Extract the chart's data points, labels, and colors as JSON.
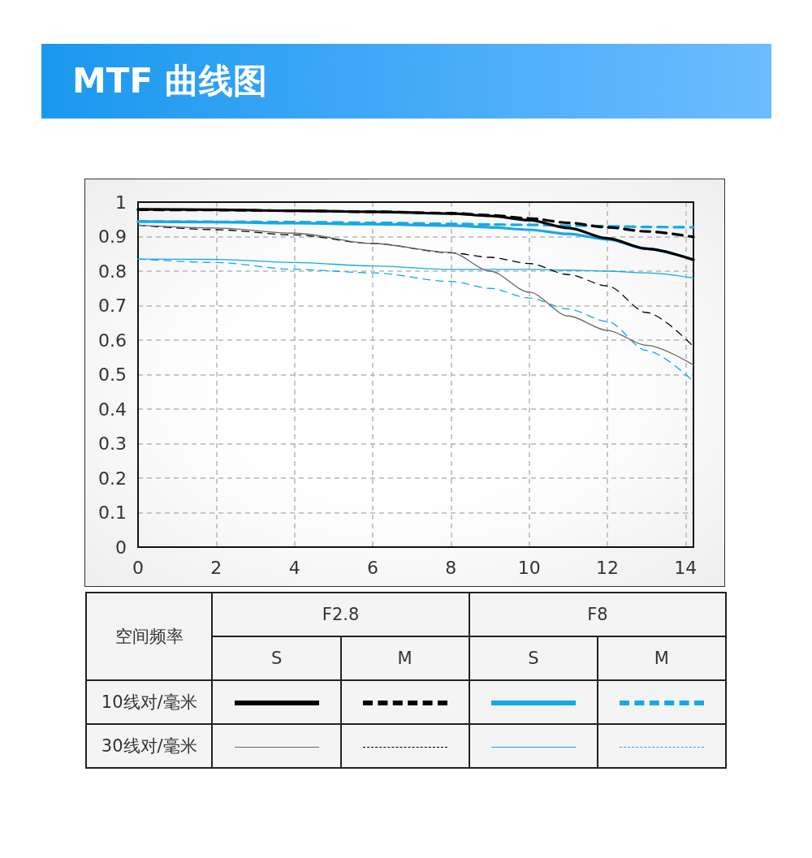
{
  "chart_data": {
    "type": "line",
    "title": "MTF 曲线图",
    "x": [
      0,
      2,
      4,
      6,
      8,
      9,
      10,
      11,
      12,
      13,
      14.2
    ],
    "series": [
      {
        "color": "#000000",
        "line_style": "solid",
        "values": [
          0.979,
          0.978,
          0.975,
          0.972,
          0.967,
          0.96,
          0.948,
          0.925,
          0.895,
          0.865,
          0.833
        ]
      },
      {
        "color": "#000000",
        "line_style": "dashed",
        "values": [
          0.978,
          0.977,
          0.975,
          0.972,
          0.968,
          0.962,
          0.953,
          0.94,
          0.927,
          0.915,
          0.899
        ]
      },
      {
        "color": "#13a9e8",
        "line_style": "solid",
        "values": [
          0.944,
          0.942,
          0.939,
          0.936,
          0.932,
          0.927,
          0.92,
          0.908,
          0.892,
          0.865,
          0.833
        ]
      },
      {
        "color": "#13a9e8",
        "line_style": "dashed",
        "values": [
          0.944,
          0.943,
          0.942,
          0.94,
          0.937,
          0.935,
          0.934,
          0.932,
          0.93,
          0.928,
          0.927
        ]
      },
      {
        "color": "#666666",
        "line_style": "solid",
        "values": [
          0.933,
          0.925,
          0.91,
          0.88,
          0.854,
          0.8,
          0.739,
          0.67,
          0.628,
          0.585,
          0.528
        ]
      },
      {
        "color": "#000000",
        "line_style": "dashed",
        "values": [
          0.933,
          0.92,
          0.905,
          0.88,
          0.853,
          0.84,
          0.822,
          0.79,
          0.757,
          0.68,
          0.581
        ]
      },
      {
        "color": "#13a9e8",
        "line_style": "solid",
        "values": [
          0.835,
          0.834,
          0.825,
          0.815,
          0.805,
          0.805,
          0.805,
          0.803,
          0.8,
          0.795,
          0.78
        ]
      },
      {
        "color": "#13a9e8",
        "line_style": "dashed",
        "values": [
          0.835,
          0.825,
          0.805,
          0.795,
          0.77,
          0.75,
          0.722,
          0.69,
          0.654,
          0.57,
          0.48
        ]
      }
    ],
    "xlim": [
      0,
      14.2
    ],
    "xticks": [
      0,
      2,
      4,
      6,
      8,
      10,
      12,
      14
    ],
    "ylim": [
      0,
      1
    ],
    "yticks": [
      0,
      0.1,
      0.2,
      0.3,
      0.4,
      0.5,
      0.6,
      0.7,
      0.8,
      0.9,
      1
    ],
    "grid": true,
    "marker": "none",
    "annotations": [
      "空间频率",
      "F2.8",
      "F8",
      "S",
      "M",
      "S",
      "M",
      "10线对/毫米",
      "30线对/毫米"
    ]
  }
}
